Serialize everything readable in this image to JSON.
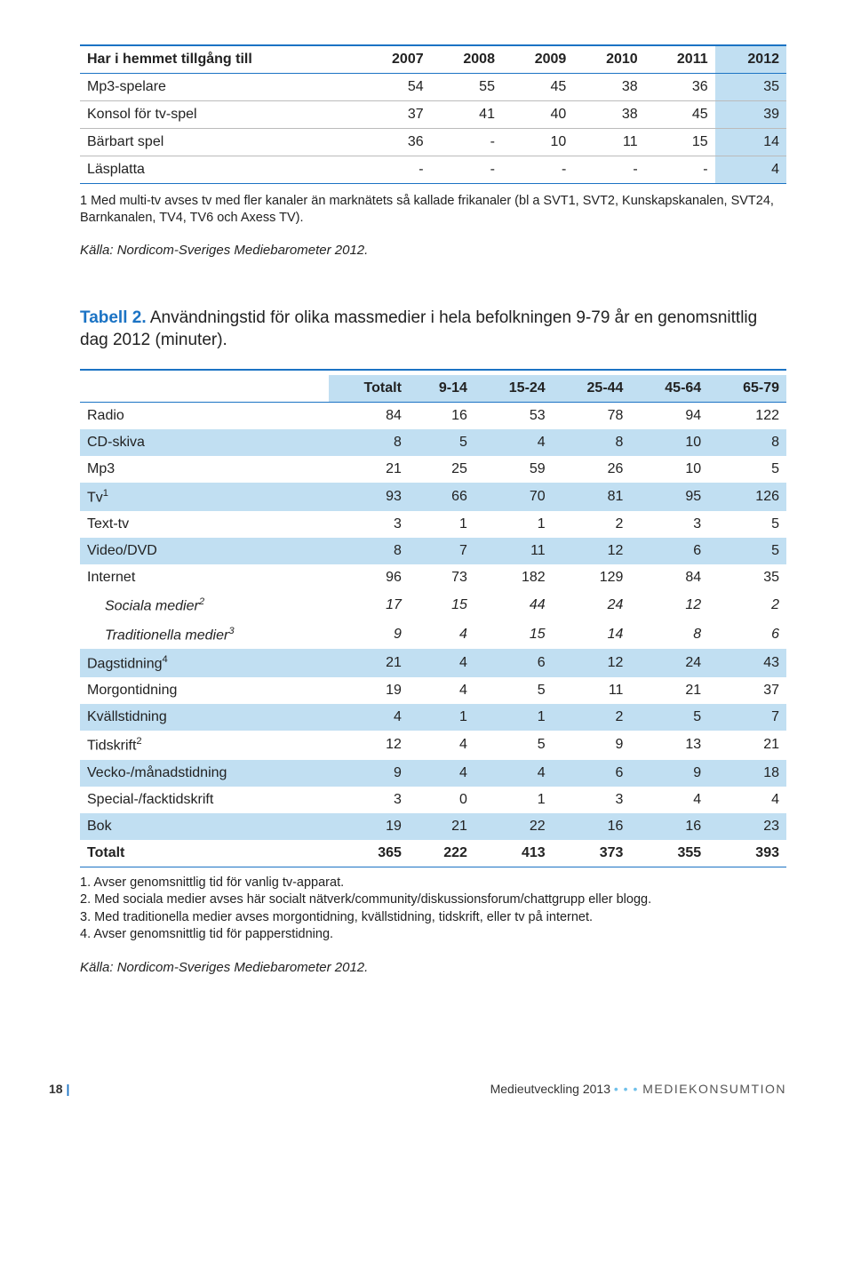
{
  "table1": {
    "header_label": "Har i hemmet tillgång till",
    "years": [
      "2007",
      "2008",
      "2009",
      "2010",
      "2011",
      "2012"
    ],
    "rows": [
      {
        "label": "Mp3-spelare",
        "cells": [
          "54",
          "55",
          "45",
          "38",
          "36",
          "35"
        ]
      },
      {
        "label": "Konsol för tv-spel",
        "cells": [
          "37",
          "41",
          "40",
          "38",
          "45",
          "39"
        ]
      },
      {
        "label": "Bärbart spel",
        "cells": [
          "36",
          "-",
          "10",
          "11",
          "15",
          "14"
        ]
      },
      {
        "label": "Läsplatta",
        "cells": [
          "-",
          "-",
          "-",
          "-",
          "-",
          "4"
        ]
      }
    ],
    "footnote": "1 Med multi-tv avses tv med fler kanaler än marknätets så kallade frikanaler (bl a SVT1, SVT2, Kunskapskanalen, SVT24, Barnkanalen, TV4, TV6 och Axess TV).",
    "source": "Källa: Nordicom-Sveriges Mediebarometer 2012."
  },
  "table2": {
    "title_prefix": "Tabell 2.",
    "title_rest": " Användningstid för olika massmedier i hela befolkningen 9-79 år en genomsnittlig dag 2012 (minuter).",
    "headers": [
      "Totalt",
      "9-14",
      "15-24",
      "25-44",
      "45-64",
      "65-79"
    ],
    "rows": [
      {
        "label": "Radio",
        "cells": [
          "84",
          "16",
          "53",
          "78",
          "94",
          "122"
        ],
        "stripe": false
      },
      {
        "label": "CD-skiva",
        "cells": [
          "8",
          "5",
          "4",
          "8",
          "10",
          "8"
        ],
        "stripe": true
      },
      {
        "label": "Mp3",
        "cells": [
          "21",
          "25",
          "59",
          "26",
          "10",
          "5"
        ],
        "stripe": false
      },
      {
        "label": "Tv",
        "sup": "1",
        "cells": [
          "93",
          "66",
          "70",
          "81",
          "95",
          "126"
        ],
        "stripe": true
      },
      {
        "label": "Text-tv",
        "cells": [
          "3",
          "1",
          "1",
          "2",
          "3",
          "5"
        ],
        "stripe": false
      },
      {
        "label": "Video/DVD",
        "cells": [
          "8",
          "7",
          "11",
          "12",
          "6",
          "5"
        ],
        "stripe": true
      },
      {
        "label": "Internet",
        "cells": [
          "96",
          "73",
          "182",
          "129",
          "84",
          "35"
        ],
        "stripe": false
      },
      {
        "label": "Sociala medier",
        "sup": "2",
        "cells": [
          "17",
          "15",
          "44",
          "24",
          "12",
          "2"
        ],
        "stripe": false,
        "indent": true,
        "italic": true
      },
      {
        "label": "Traditionella medier",
        "sup": "3",
        "cells": [
          "9",
          "4",
          "15",
          "14",
          "8",
          "6"
        ],
        "stripe": false,
        "indent": true,
        "italic": true
      },
      {
        "label": "Dagstidning",
        "sup": "4",
        "cells": [
          "21",
          "4",
          "6",
          "12",
          "24",
          "43"
        ],
        "stripe": true
      },
      {
        "label": "Morgontidning",
        "cells": [
          "19",
          "4",
          "5",
          "11",
          "21",
          "37"
        ],
        "stripe": false
      },
      {
        "label": "Kvällstidning",
        "cells": [
          "4",
          "1",
          "1",
          "2",
          "5",
          "7"
        ],
        "stripe": true
      },
      {
        "label": "Tidskrift",
        "sup": "2",
        "cells": [
          "12",
          "4",
          "5",
          "9",
          "13",
          "21"
        ],
        "stripe": false
      },
      {
        "label": "Vecko-/månadstidning",
        "cells": [
          "9",
          "4",
          "4",
          "6",
          "9",
          "18"
        ],
        "stripe": true
      },
      {
        "label": "Special-/facktidskrift",
        "cells": [
          "3",
          "0",
          "1",
          "3",
          "4",
          "4"
        ],
        "stripe": false
      },
      {
        "label": "Bok",
        "cells": [
          "19",
          "21",
          "22",
          "16",
          "16",
          "23"
        ],
        "stripe": true
      },
      {
        "label": "Totalt",
        "cells": [
          "365",
          "222",
          "413",
          "373",
          "355",
          "393"
        ],
        "stripe": false,
        "total": true
      }
    ],
    "footnotes": [
      "1. Avser genomsnittlig tid för vanlig tv-apparat.",
      "2. Med sociala medier avses här socialt nätverk/community/diskussionsforum/chattgrupp eller blogg.",
      "3. Med traditionella medier avses morgontidning, kvällstidning, tidskrift, eller tv på internet.",
      "4. Avser genomsnittlig tid för papperstidning."
    ],
    "source": "Källa: Nordicom-Sveriges Mediebarometer 2012."
  },
  "footer": {
    "page": "18",
    "pub": "Medieutveckling 2013",
    "section": "MEDIEKONSUMTION"
  },
  "colors": {
    "stripe": "#c1dff2",
    "rule": "#1b73c4"
  }
}
